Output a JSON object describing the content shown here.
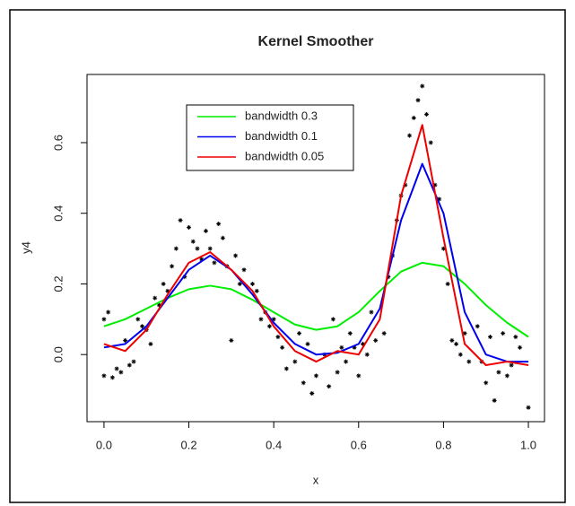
{
  "chart_data": {
    "type": "line",
    "title": "Kernel Smoother",
    "x_label": "x",
    "y_label": "y4",
    "x": [
      0,
      0.05,
      0.1,
      0.15,
      0.2,
      0.25,
      0.3,
      0.35,
      0.4,
      0.45,
      0.5,
      0.55,
      0.6,
      0.65,
      0.7,
      0.75,
      0.8,
      0.85,
      0.9,
      0.95,
      1.0
    ],
    "series": [
      {
        "name": "bandwidth 0.3",
        "color": "#00ee00",
        "values": [
          0.08,
          0.1,
          0.13,
          0.16,
          0.185,
          0.195,
          0.185,
          0.155,
          0.12,
          0.085,
          0.07,
          0.08,
          0.12,
          0.18,
          0.235,
          0.26,
          0.25,
          0.2,
          0.14,
          0.09,
          0.05
        ]
      },
      {
        "name": "bandwidth 0.1",
        "color": "#0000ee",
        "values": [
          0.02,
          0.03,
          0.08,
          0.16,
          0.24,
          0.28,
          0.24,
          0.17,
          0.09,
          0.03,
          0.0,
          0.005,
          0.03,
          0.13,
          0.38,
          0.54,
          0.4,
          0.12,
          0.0,
          -0.02,
          -0.02
        ]
      },
      {
        "name": "bandwidth 0.05",
        "color": "#ee0000",
        "values": [
          0.03,
          0.01,
          0.07,
          0.17,
          0.26,
          0.29,
          0.24,
          0.18,
          0.08,
          0.01,
          -0.02,
          0.01,
          0.0,
          0.1,
          0.45,
          0.65,
          0.33,
          0.03,
          -0.03,
          -0.02,
          -0.03
        ]
      }
    ],
    "points": {
      "color": "#000000",
      "x": [
        0.0,
        0.01,
        0.0,
        0.02,
        0.03,
        0.04,
        0.05,
        0.06,
        0.07,
        0.08,
        0.09,
        0.1,
        0.11,
        0.12,
        0.13,
        0.14,
        0.15,
        0.16,
        0.17,
        0.18,
        0.19,
        0.2,
        0.21,
        0.22,
        0.23,
        0.24,
        0.25,
        0.26,
        0.27,
        0.28,
        0.29,
        0.3,
        0.31,
        0.32,
        0.33,
        0.35,
        0.36,
        0.37,
        0.38,
        0.39,
        0.4,
        0.41,
        0.42,
        0.43,
        0.45,
        0.46,
        0.47,
        0.48,
        0.49,
        0.5,
        0.52,
        0.53,
        0.54,
        0.55,
        0.56,
        0.57,
        0.58,
        0.59,
        0.6,
        0.61,
        0.62,
        0.63,
        0.64,
        0.66,
        0.67,
        0.68,
        0.69,
        0.7,
        0.71,
        0.72,
        0.73,
        0.74,
        0.75,
        0.76,
        0.77,
        0.78,
        0.79,
        0.8,
        0.81,
        0.82,
        0.83,
        0.84,
        0.85,
        0.86,
        0.88,
        0.89,
        0.9,
        0.91,
        0.92,
        0.93,
        0.94,
        0.95,
        0.96,
        0.97,
        0.98,
        1.0
      ],
      "y": [
        0.1,
        0.12,
        -0.06,
        -0.065,
        -0.04,
        -0.05,
        0.04,
        -0.03,
        -0.02,
        0.1,
        0.08,
        0.07,
        0.03,
        0.16,
        0.14,
        0.2,
        0.18,
        0.25,
        0.3,
        0.38,
        0.22,
        0.36,
        0.32,
        0.3,
        0.27,
        0.35,
        0.3,
        0.26,
        0.37,
        0.33,
        0.25,
        0.04,
        0.28,
        0.2,
        0.24,
        0.2,
        0.18,
        0.1,
        0.12,
        0.08,
        0.1,
        0.05,
        0.02,
        -0.04,
        -0.02,
        0.06,
        -0.08,
        0.03,
        -0.11,
        -0.06,
        0.0,
        -0.09,
        0.1,
        -0.05,
        0.02,
        -0.02,
        0.06,
        0.02,
        -0.06,
        0.03,
        0.0,
        0.12,
        0.04,
        0.06,
        0.22,
        0.28,
        0.38,
        0.45,
        0.48,
        0.62,
        0.67,
        0.72,
        0.76,
        0.68,
        0.6,
        0.48,
        0.44,
        0.3,
        0.2,
        0.04,
        0.03,
        0.0,
        0.06,
        -0.02,
        0.08,
        -0.02,
        -0.08,
        0.05,
        -0.13,
        -0.05,
        0.06,
        -0.06,
        -0.03,
        0.05,
        0.02,
        -0.15
      ]
    },
    "xlim": [
      -0.04,
      1.038
    ],
    "ylim": [
      -0.19,
      0.793
    ],
    "xticks": [
      {
        "value": 0,
        "label": "0.0"
      },
      0.2,
      0.4,
      0.6,
      0.8,
      {
        "value": 1,
        "label": "1.0"
      }
    ],
    "yticks": [
      {
        "value": 0,
        "label": "0.0"
      },
      0.2,
      0.4,
      0.6
    ]
  }
}
